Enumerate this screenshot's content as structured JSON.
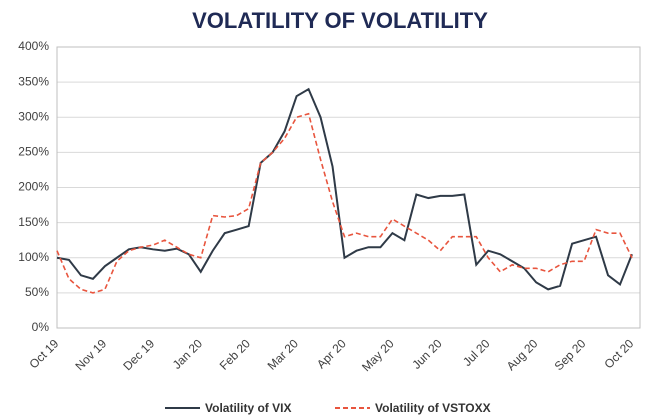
{
  "chart_data": {
    "type": "line",
    "title": "VOLATILITY OF VOLATILITY",
    "categories": [
      "Oct 19",
      null,
      null,
      null,
      "Nov 19",
      null,
      null,
      null,
      "Dec 19",
      null,
      null,
      null,
      "Jan 20",
      null,
      null,
      null,
      "Feb 20",
      null,
      null,
      null,
      "Mar 20",
      null,
      null,
      null,
      "Apr 20",
      null,
      null,
      null,
      "May 20",
      null,
      null,
      null,
      "Jun 20",
      null,
      null,
      null,
      "Jul 20",
      null,
      null,
      null,
      "Aug 20",
      null,
      null,
      null,
      "Sep 20",
      null,
      null,
      null,
      "Oct 20"
    ],
    "series": [
      {
        "name": "Volatility of VIX",
        "color": "#2f3a47",
        "style": "solid",
        "values": [
          100,
          97,
          75,
          70,
          88,
          100,
          112,
          115,
          112,
          110,
          113,
          105,
          80,
          110,
          135,
          140,
          145,
          235,
          250,
          280,
          330,
          340,
          300,
          230,
          100,
          110,
          115,
          115,
          135,
          125,
          190,
          185,
          188,
          188,
          190,
          90,
          110,
          105,
          95,
          85,
          65,
          55,
          60,
          120,
          125,
          130,
          75,
          62,
          105
        ]
      },
      {
        "name": "Volatility of VSTOXX",
        "color": "#e8553e",
        "style": "dashed",
        "values": [
          110,
          70,
          55,
          50,
          55,
          95,
          110,
          115,
          118,
          125,
          115,
          105,
          100,
          160,
          158,
          160,
          170,
          235,
          250,
          270,
          300,
          305,
          240,
          180,
          130,
          135,
          130,
          130,
          155,
          145,
          135,
          125,
          110,
          130,
          130,
          130,
          100,
          80,
          90,
          85,
          85,
          80,
          90,
          95,
          95,
          140,
          135,
          135,
          100
        ]
      }
    ],
    "ylim": [
      0,
      400
    ],
    "yticks": [
      {
        "value": 0,
        "label": "0%"
      },
      {
        "value": 50,
        "label": "50%"
      },
      {
        "value": 100,
        "label": "100%"
      },
      {
        "value": 150,
        "label": "150%"
      },
      {
        "value": 200,
        "label": "200%"
      },
      {
        "value": 250,
        "label": "250%"
      },
      {
        "value": 300,
        "label": "300%"
      },
      {
        "value": 350,
        "label": "350%"
      },
      {
        "value": 400,
        "label": "400%"
      }
    ],
    "grid": true
  }
}
